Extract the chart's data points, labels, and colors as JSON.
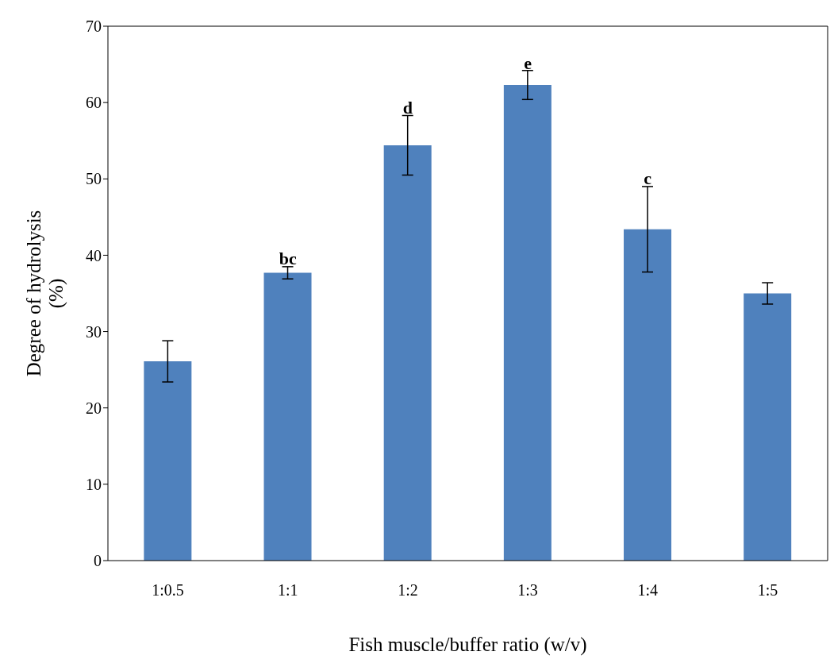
{
  "chart_data": {
    "type": "bar",
    "xlabel": "Fish muscle/buffer ratio (w/v)",
    "ylabel": "Degree of hydrolysis (%)",
    "categories": [
      "1:0.5",
      "1:1",
      "1:2",
      "1:3",
      "1:4",
      "1:5"
    ],
    "values": [
      26.1,
      37.7,
      54.4,
      62.3,
      43.4,
      35.0
    ],
    "errors": [
      2.7,
      0.8,
      3.9,
      1.9,
      5.6,
      1.4
    ],
    "color": "#4f81bd",
    "ylim": [
      0,
      70
    ],
    "yticks": [
      0,
      10,
      20,
      30,
      40,
      50,
      60,
      70
    ],
    "grid": false,
    "legend": false,
    "annotations": [
      {
        "text": "bc",
        "x": "1:1",
        "y": 38.6
      },
      {
        "text": "d",
        "x": "1:2",
        "y": 58.3
      },
      {
        "text": "e",
        "x": "1:3",
        "y": 64.2
      },
      {
        "text": "c",
        "x": "1:4",
        "y": 49.1
      }
    ]
  }
}
